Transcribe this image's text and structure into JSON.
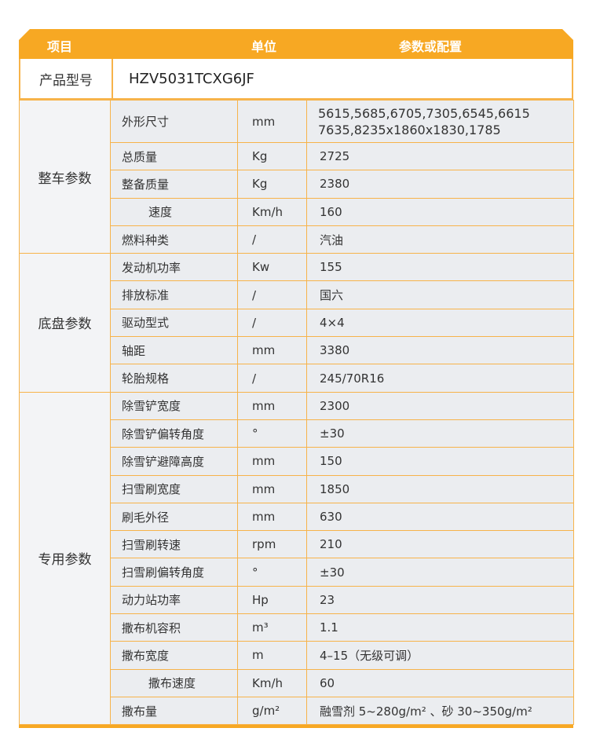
{
  "header": {
    "item": "项目",
    "unit": "单位",
    "value": "参数或配置"
  },
  "product": {
    "label": "产品型号",
    "value": "HZV5031TCXG6JF"
  },
  "groups": [
    {
      "name": "整车参数",
      "rows": [
        {
          "item": "外形尺寸",
          "unit": "mm",
          "value": "5615,5685,6705,7305,6545,6615",
          "value2": "7635,8235x1860x1830,1785"
        },
        {
          "item": "总质量",
          "unit": "Kg",
          "value": "2725"
        },
        {
          "item": "整备质量",
          "unit": "Kg",
          "value": "2380"
        },
        {
          "item": "速度",
          "unit": "Km/h",
          "value": "160",
          "indent": true
        },
        {
          "item": "燃料种类",
          "unit": "/",
          "value": "汽油"
        }
      ]
    },
    {
      "name": "底盘参数",
      "rows": [
        {
          "item": "发动机功率",
          "unit": "Kw",
          "value": "155"
        },
        {
          "item": "排放标准",
          "unit": "/",
          "value": "国六"
        },
        {
          "item": "驱动型式",
          "unit": "/",
          "value": "4×4"
        },
        {
          "item": "轴距",
          "unit": "mm",
          "value": "3380"
        },
        {
          "item": "轮胎规格",
          "unit": "/",
          "value": "245/70R16"
        }
      ]
    },
    {
      "name": "专用参数",
      "rows": [
        {
          "item": "除雪铲宽度",
          "unit": "mm",
          "value": "2300"
        },
        {
          "item": "除雪铲偏转角度",
          "unit": "°",
          "value": "±30"
        },
        {
          "item": "除雪铲避障高度",
          "unit": "mm",
          "value": "150"
        },
        {
          "item": "扫雪刷宽度",
          "unit": "mm",
          "value": "1850"
        },
        {
          "item": "刷毛外径",
          "unit": "mm",
          "value": "630"
        },
        {
          "item": "扫雪刷转速",
          "unit": "rpm",
          "value": "210"
        },
        {
          "item": "扫雪刷偏转角度",
          "unit": "°",
          "value": "±30"
        },
        {
          "item": "动力站功率",
          "unit": "Hp",
          "value": "23"
        },
        {
          "item": "撒布机容积",
          "unit": "m³",
          "value": "1.1"
        },
        {
          "item": "撒布宽度",
          "unit": "m",
          "value": "4–15（无级可调）"
        },
        {
          "item": "撒布速度",
          "unit": "Km/h",
          "value": "60",
          "indent": true
        },
        {
          "item": "撒布量",
          "unit": "g/m²",
          "value": "融雪剂 5~280g/m² 、砂 30~350g/m²"
        }
      ]
    }
  ],
  "colors": {
    "accent": "#f7a823",
    "row_bg": "#ebedf0",
    "group_bg": "#f3f4f6"
  }
}
